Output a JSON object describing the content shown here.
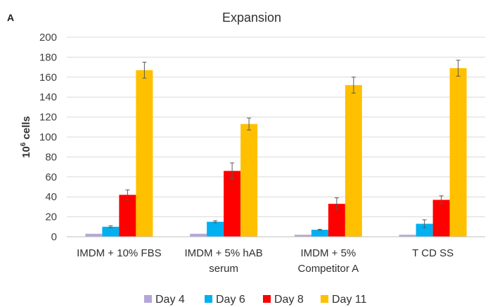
{
  "panel_label": "A",
  "chart_data": {
    "type": "bar",
    "title": "Expansion",
    "ylabel": {
      "base": "10",
      "exponent": "6",
      "suffix": " cells"
    },
    "xlabel": "",
    "ylim": [
      0,
      200
    ],
    "yticks": [
      0,
      20,
      40,
      60,
      80,
      100,
      120,
      140,
      160,
      180,
      200
    ],
    "grid": true,
    "legend_position": "bottom",
    "categories": [
      [
        "IMDM + 10% FBS"
      ],
      [
        "IMDM + 5% hAB",
        "serum"
      ],
      [
        "IMDM + 5%",
        "Competitor A"
      ],
      [
        "T CD SS"
      ]
    ],
    "series": [
      {
        "name": "Day 4",
        "color": "#b4a7d6",
        "values": [
          3,
          3,
          2,
          2
        ],
        "errors": [
          0,
          0,
          0,
          0
        ]
      },
      {
        "name": "Day 6",
        "color": "#00b0f0",
        "values": [
          10,
          15,
          7,
          13
        ],
        "errors": [
          1,
          1,
          0.5,
          4
        ]
      },
      {
        "name": "Day 8",
        "color": "#ff0000",
        "values": [
          42,
          66,
          33,
          37
        ],
        "errors": [
          5,
          8,
          6,
          4
        ]
      },
      {
        "name": "Day 11",
        "color": "#ffc000",
        "values": [
          167,
          113,
          152,
          169
        ],
        "errors": [
          8,
          6,
          8,
          8
        ]
      }
    ]
  }
}
